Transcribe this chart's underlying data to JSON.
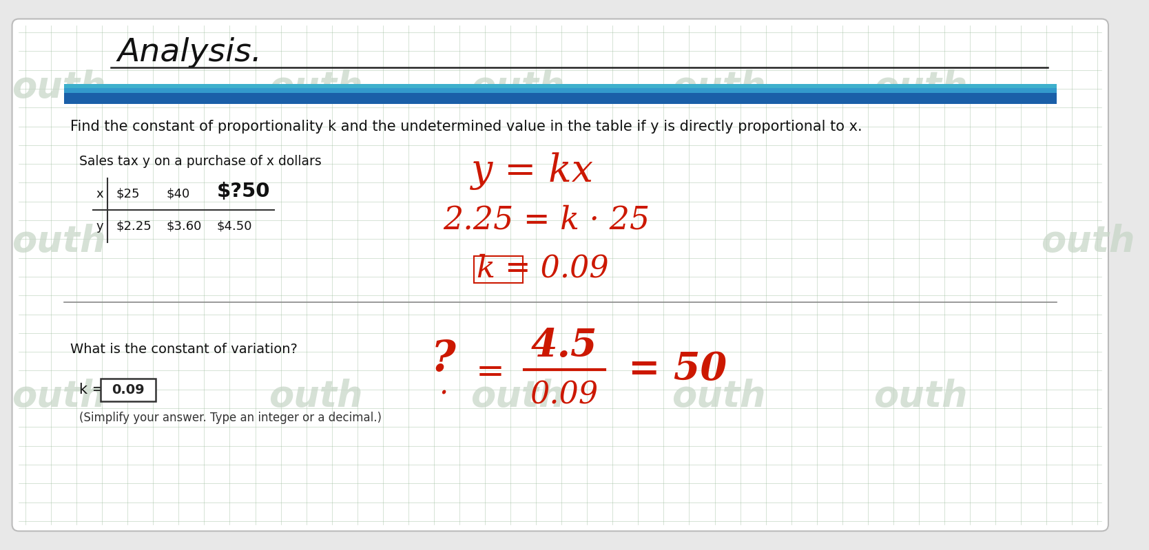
{
  "bg_color": "#e8e8e8",
  "card_color": "#ffffff",
  "title": "Analysis.",
  "blue_bar_color1": "#1a5fa8",
  "blue_bar_color2": "#3399cc",
  "instruction": "Find the constant of proportionality k and the undetermined value in the table if y is directly proportional to x.",
  "table_label": "Sales tax y on a purchase of x dollars",
  "table_x_values_black": [
    "$25",
    "$40"
  ],
  "table_x_unknown": "$?50",
  "table_y_values": [
    "$2.25",
    "$3.60",
    "$4.50"
  ],
  "red_eq1": "y = kx",
  "red_eq2": "2.25 = k·25",
  "red_eq3": "k = 0.09",
  "question_text": "What is the constant of variation?",
  "answer_value": "0.09",
  "answer_note": "(Simplify your answer. Type an integer or a decimal.)",
  "watermark_text": "outh",
  "watermark_color": "#c5d5c5",
  "grid_color": "#9fbe9f",
  "red_color": "#cc1800"
}
